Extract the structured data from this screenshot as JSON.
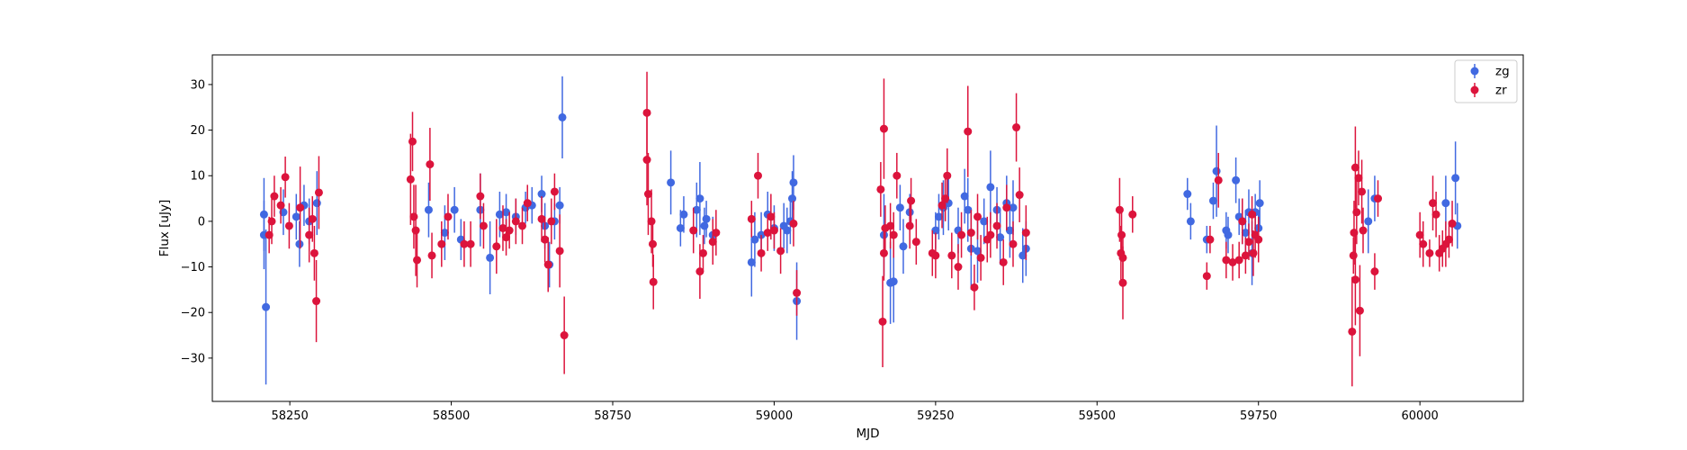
{
  "chart_data": {
    "type": "scatter",
    "title": "",
    "xlabel": "MJD",
    "ylabel": "Flux [uJy]",
    "xlim": [
      58130,
      60160
    ],
    "ylim": [
      -39.5,
      36.5
    ],
    "xticks": [
      58250,
      58500,
      58750,
      59000,
      59250,
      59500,
      59750,
      60000
    ],
    "yticks": [
      -30,
      -20,
      -10,
      0,
      10,
      20,
      30
    ],
    "grid": false,
    "legend_position": "top-right",
    "error_bars": true,
    "series": [
      {
        "name": "zg",
        "color": "#4169e1",
        "points": [
          [
            58210,
            1.5,
            8
          ],
          [
            58210,
            -3,
            7.5
          ],
          [
            58213,
            -18.8,
            17
          ],
          [
            58240,
            2,
            5
          ],
          [
            58260,
            1,
            5
          ],
          [
            58265,
            -5,
            5
          ],
          [
            58272,
            3.5,
            4.5
          ],
          [
            58280,
            0,
            5
          ],
          [
            58292,
            4,
            7
          ],
          [
            58465,
            2.5,
            6
          ],
          [
            58490,
            -2.5,
            6
          ],
          [
            58505,
            2.5,
            5
          ],
          [
            58515,
            -4,
            4.5
          ],
          [
            58545,
            2.5,
            8
          ],
          [
            58560,
            -8,
            8
          ],
          [
            58575,
            1.5,
            5
          ],
          [
            58585,
            2,
            4
          ],
          [
            58600,
            1,
            4
          ],
          [
            58615,
            3,
            3.5
          ],
          [
            58625,
            3.5,
            4
          ],
          [
            58640,
            6,
            4
          ],
          [
            58645,
            -1,
            5
          ],
          [
            58652,
            -9.5,
            5
          ],
          [
            58660,
            0,
            4
          ],
          [
            58668,
            3.5,
            4
          ],
          [
            58672,
            22.8,
            9
          ],
          [
            58840,
            8.5,
            7
          ],
          [
            58855,
            -1.5,
            4
          ],
          [
            58860,
            1.5,
            4
          ],
          [
            58880,
            2.5,
            6
          ],
          [
            58885,
            5,
            8
          ],
          [
            58892,
            -1,
            4
          ],
          [
            58895,
            0.5,
            4
          ],
          [
            58905,
            -3,
            4
          ],
          [
            58965,
            -9,
            7.5
          ],
          [
            58970,
            -4,
            6
          ],
          [
            58980,
            -3,
            5
          ],
          [
            58990,
            1.5,
            5
          ],
          [
            59000,
            -1.5,
            5
          ],
          [
            59015,
            -1,
            5
          ],
          [
            59020,
            -2,
            5
          ],
          [
            59025,
            0,
            5
          ],
          [
            59028,
            5,
            6
          ],
          [
            59030,
            8.5,
            6
          ],
          [
            59035,
            -17.5,
            8.5
          ],
          [
            59170,
            -3,
            9
          ],
          [
            59180,
            -13.5,
            9
          ],
          [
            59185,
            -13.2,
            9
          ],
          [
            59195,
            3,
            5
          ],
          [
            59200,
            -5.5,
            6
          ],
          [
            59210,
            2,
            4
          ],
          [
            59250,
            -2,
            4
          ],
          [
            59255,
            1,
            5
          ],
          [
            59262,
            3,
            6
          ],
          [
            59270,
            4,
            6
          ],
          [
            59285,
            -2,
            5
          ],
          [
            59295,
            5.5,
            6
          ],
          [
            59300,
            2.5,
            7
          ],
          [
            59305,
            -6,
            9
          ],
          [
            59315,
            -6.5,
            7
          ],
          [
            59325,
            0,
            5
          ],
          [
            59335,
            7.5,
            8
          ],
          [
            59345,
            2.5,
            5
          ],
          [
            59350,
            -3.5,
            6
          ],
          [
            59360,
            4,
            6
          ],
          [
            59365,
            -2,
            6
          ],
          [
            59370,
            3,
            6
          ],
          [
            59385,
            -7.5,
            6
          ],
          [
            59390,
            -6,
            6
          ],
          [
            59640,
            6,
            3.5
          ],
          [
            59645,
            0,
            4
          ],
          [
            59670,
            -4,
            3
          ],
          [
            59680,
            4.5,
            4
          ],
          [
            59685,
            11,
            10
          ],
          [
            59700,
            -2,
            4
          ],
          [
            59703,
            -3,
            4
          ],
          [
            59715,
            9,
            5
          ],
          [
            59720,
            1,
            4
          ],
          [
            59725,
            0,
            5
          ],
          [
            59730,
            -2.5,
            5
          ],
          [
            59735,
            2,
            5
          ],
          [
            59740,
            -7,
            7
          ],
          [
            59745,
            2,
            4
          ],
          [
            59750,
            -1.5,
            4
          ],
          [
            59752,
            4,
            5
          ],
          [
            59920,
            0,
            7
          ],
          [
            59930,
            5,
            5
          ],
          [
            60040,
            4,
            6
          ],
          [
            60055,
            9.5,
            8
          ],
          [
            60058,
            -1,
            5
          ]
        ]
      },
      {
        "name": "zr",
        "color": "#dc143c",
        "points": [
          [
            58218,
            -3,
            4
          ],
          [
            58222,
            0,
            5
          ],
          [
            58226,
            5.5,
            4.5
          ],
          [
            58236,
            3.5,
            4
          ],
          [
            58243,
            9.7,
            4.5
          ],
          [
            58249,
            -1,
            5
          ],
          [
            58266,
            3,
            9
          ],
          [
            58280,
            -3,
            6
          ],
          [
            58285,
            0.5,
            5
          ],
          [
            58288,
            -7,
            6
          ],
          [
            58291,
            -17.5,
            9
          ],
          [
            58295,
            6.3,
            8
          ],
          [
            58437,
            9.2,
            10
          ],
          [
            58440,
            17.5,
            6.5
          ],
          [
            58442,
            1,
            7
          ],
          [
            58445,
            -2,
            10
          ],
          [
            58447,
            -8.5,
            6
          ],
          [
            58467,
            12.5,
            8
          ],
          [
            58470,
            -7.5,
            5
          ],
          [
            58485,
            -5,
            5
          ],
          [
            58495,
            1,
            5
          ],
          [
            58520,
            -5,
            5
          ],
          [
            58530,
            -5,
            5
          ],
          [
            58545,
            5.5,
            5
          ],
          [
            58550,
            -1,
            5
          ],
          [
            58570,
            -5.5,
            6
          ],
          [
            58580,
            -1.5,
            5
          ],
          [
            58585,
            -3.5,
            4
          ],
          [
            58590,
            -2,
            4
          ],
          [
            58600,
            0,
            5
          ],
          [
            58610,
            -1,
            4
          ],
          [
            58618,
            4,
            4
          ],
          [
            58640,
            0.5,
            5
          ],
          [
            58645,
            -4,
            5
          ],
          [
            58650,
            -9.5,
            6
          ],
          [
            58655,
            0,
            5
          ],
          [
            58660,
            6.5,
            4
          ],
          [
            58668,
            -6.5,
            8
          ],
          [
            58675,
            -25,
            8.5
          ],
          [
            58803,
            23.8,
            9
          ],
          [
            58803,
            13.5,
            10
          ],
          [
            58805,
            6,
            9
          ],
          [
            58810,
            0,
            7
          ],
          [
            58813,
            -13.3,
            6
          ],
          [
            58812,
            -5,
            5
          ],
          [
            58875,
            -2,
            5
          ],
          [
            58885,
            -11,
            6
          ],
          [
            58890,
            -7,
            4
          ],
          [
            58905,
            -4.5,
            5
          ],
          [
            58910,
            -2.5,
            5
          ],
          [
            58965,
            0.5,
            4
          ],
          [
            58975,
            10,
            5
          ],
          [
            58980,
            -7,
            4
          ],
          [
            58990,
            -2.5,
            4
          ],
          [
            58995,
            1,
            5
          ],
          [
            59000,
            -2,
            4
          ],
          [
            59010,
            -6.5,
            5
          ],
          [
            59030,
            -0.5,
            5
          ],
          [
            59035,
            -15.7,
            5
          ],
          [
            59165,
            7,
            6
          ],
          [
            59168,
            -22,
            10
          ],
          [
            59170,
            -7,
            6
          ],
          [
            59170,
            20.3,
            11
          ],
          [
            59172,
            -1.5,
            5
          ],
          [
            59180,
            -1,
            5
          ],
          [
            59185,
            -3,
            5
          ],
          [
            59190,
            10,
            5
          ],
          [
            59210,
            -1,
            5
          ],
          [
            59212,
            4.5,
            5
          ],
          [
            59220,
            -4.5,
            5
          ],
          [
            59245,
            -7,
            5
          ],
          [
            59250,
            -7.5,
            5
          ],
          [
            59260,
            3.5,
            5
          ],
          [
            59265,
            5,
            5
          ],
          [
            59268,
            10,
            6
          ],
          [
            59275,
            -7.5,
            5
          ],
          [
            59285,
            -10,
            5
          ],
          [
            59290,
            -3,
            5
          ],
          [
            59300,
            19.7,
            10
          ],
          [
            59305,
            -2.5,
            5
          ],
          [
            59310,
            -14.5,
            5
          ],
          [
            59315,
            1,
            5
          ],
          [
            59320,
            -8,
            5
          ],
          [
            59330,
            -4,
            5
          ],
          [
            59335,
            -3,
            5
          ],
          [
            59345,
            -1,
            5
          ],
          [
            59355,
            -9,
            5
          ],
          [
            59360,
            3,
            5
          ],
          [
            59370,
            -5,
            5
          ],
          [
            59375,
            20.6,
            7.5
          ],
          [
            59380,
            5.8,
            6
          ],
          [
            59390,
            -2.5,
            6
          ],
          [
            59535,
            2.5,
            7
          ],
          [
            59537,
            -7,
            6
          ],
          [
            59538,
            -3,
            5
          ],
          [
            59540,
            -13.5,
            8
          ],
          [
            59540,
            -8,
            5
          ],
          [
            59555,
            1.5,
            4
          ],
          [
            59670,
            -12,
            3
          ],
          [
            59675,
            -4,
            3
          ],
          [
            59688,
            9,
            6
          ],
          [
            59700,
            -8.5,
            4
          ],
          [
            59710,
            -9,
            4
          ],
          [
            59720,
            -8.5,
            4
          ],
          [
            59725,
            0,
            5
          ],
          [
            59730,
            -7.5,
            4
          ],
          [
            59735,
            -4.5,
            4
          ],
          [
            59740,
            1.5,
            4
          ],
          [
            59742,
            -7,
            5
          ],
          [
            59745,
            -3,
            5
          ],
          [
            59750,
            -4,
            5
          ],
          [
            59895,
            -24.2,
            12
          ],
          [
            59897,
            -7.5,
            4
          ],
          [
            59898,
            -2.5,
            7
          ],
          [
            59900,
            11.8,
            9
          ],
          [
            59900,
            -12.8,
            10
          ],
          [
            59902,
            2,
            7
          ],
          [
            59905,
            9.5,
            6
          ],
          [
            59907,
            -19.6,
            10
          ],
          [
            59910,
            6.5,
            7
          ],
          [
            59912,
            -2,
            5
          ],
          [
            59930,
            -11,
            4
          ],
          [
            59935,
            5,
            4
          ],
          [
            60000,
            -3,
            5
          ],
          [
            60005,
            -5,
            5
          ],
          [
            60015,
            -7,
            3
          ],
          [
            60020,
            4,
            6
          ],
          [
            60025,
            1.5,
            5
          ],
          [
            60030,
            -7,
            4
          ],
          [
            60035,
            -6,
            4
          ],
          [
            60040,
            -5,
            5
          ],
          [
            60045,
            -4,
            4
          ],
          [
            60050,
            -0.5,
            5
          ]
        ]
      }
    ]
  }
}
